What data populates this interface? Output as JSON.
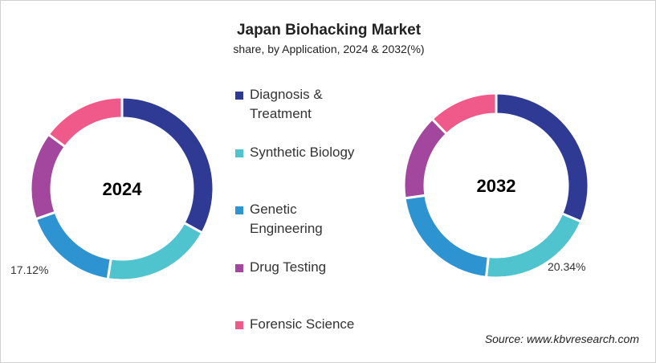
{
  "chart_data": {
    "type": "donut",
    "title": "Japan Biohacking Market",
    "subtitle": "share, by Application, 2024 & 2032(%)",
    "categories": [
      "Diagnosis & Treatment",
      "Synthetic Biology",
      "Genetic Engineering",
      "Drug Testing",
      "Forensic Science"
    ],
    "colors": [
      "#2e3a93",
      "#4fc4cf",
      "#2e94d1",
      "#a3469e",
      "#ef5a8a"
    ],
    "legend_position": "center",
    "series": [
      {
        "name": "2024",
        "values": [
          33.0,
          19.5,
          17.12,
          15.5,
          14.88
        ],
        "data_label": "17.12%"
      },
      {
        "name": "2032",
        "values": [
          31.4,
          20.34,
          21.06,
          15.0,
          12.2
        ],
        "data_label": "20.34%"
      }
    ]
  },
  "source": "Source: www.kbvresearch.com"
}
